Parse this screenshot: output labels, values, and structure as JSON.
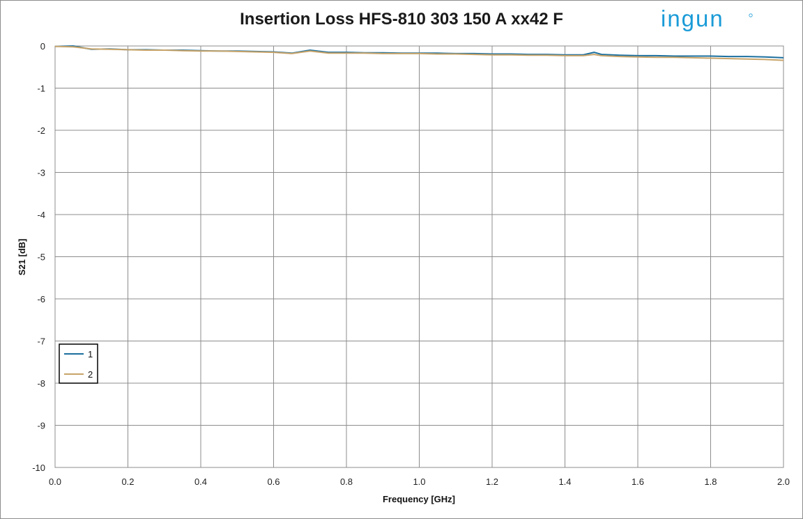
{
  "brand": {
    "name": "ingun",
    "color": "#1a9bd7"
  },
  "chart_data": {
    "type": "line",
    "title": "Insertion Loss HFS-810 303 150 A xx42 F",
    "xlabel": "Frequency [GHz]",
    "ylabel": "S21 [dB]",
    "xlim": [
      0,
      2
    ],
    "ylim": [
      -10,
      0
    ],
    "x_ticks": [
      "0.0",
      "0.2",
      "0.4",
      "0.6",
      "0.8",
      "1.0",
      "1.2",
      "1.4",
      "1.6",
      "1.8",
      "2.0"
    ],
    "y_ticks": [
      "0",
      "-1",
      "-2",
      "-3",
      "-4",
      "-5",
      "-6",
      "-7",
      "-8",
      "-9",
      "-10"
    ],
    "grid": true,
    "legend_position": "bottom-left",
    "series": [
      {
        "name": "1",
        "color": "#1b6f9e",
        "x": [
          0.0,
          0.05,
          0.1,
          0.15,
          0.2,
          0.25,
          0.3,
          0.35,
          0.4,
          0.45,
          0.5,
          0.55,
          0.6,
          0.65,
          0.7,
          0.75,
          0.8,
          0.85,
          0.9,
          0.95,
          1.0,
          1.05,
          1.1,
          1.15,
          1.2,
          1.25,
          1.3,
          1.35,
          1.4,
          1.45,
          1.48,
          1.5,
          1.55,
          1.6,
          1.65,
          1.7,
          1.75,
          1.8,
          1.85,
          1.9,
          1.95,
          2.0
        ],
        "values": [
          -0.01,
          0.0,
          -0.08,
          -0.07,
          -0.09,
          -0.09,
          -0.1,
          -0.1,
          -0.11,
          -0.12,
          -0.12,
          -0.13,
          -0.14,
          -0.17,
          -0.1,
          -0.15,
          -0.15,
          -0.16,
          -0.16,
          -0.17,
          -0.17,
          -0.17,
          -0.18,
          -0.18,
          -0.19,
          -0.19,
          -0.2,
          -0.2,
          -0.21,
          -0.21,
          -0.15,
          -0.2,
          -0.22,
          -0.23,
          -0.23,
          -0.24,
          -0.24,
          -0.24,
          -0.25,
          -0.25,
          -0.26,
          -0.28
        ]
      },
      {
        "name": "2",
        "color": "#c8a46a",
        "x": [
          0.0,
          0.05,
          0.1,
          0.15,
          0.2,
          0.25,
          0.3,
          0.35,
          0.4,
          0.45,
          0.5,
          0.55,
          0.6,
          0.65,
          0.7,
          0.75,
          0.8,
          0.85,
          0.9,
          0.95,
          1.0,
          1.05,
          1.1,
          1.15,
          1.2,
          1.25,
          1.3,
          1.35,
          1.4,
          1.45,
          1.48,
          1.5,
          1.55,
          1.6,
          1.65,
          1.7,
          1.75,
          1.8,
          1.85,
          1.9,
          1.95,
          2.0
        ],
        "values": [
          -0.01,
          -0.02,
          -0.07,
          -0.08,
          -0.09,
          -0.1,
          -0.1,
          -0.11,
          -0.12,
          -0.12,
          -0.13,
          -0.14,
          -0.15,
          -0.18,
          -0.12,
          -0.17,
          -0.17,
          -0.17,
          -0.18,
          -0.18,
          -0.18,
          -0.19,
          -0.19,
          -0.2,
          -0.21,
          -0.21,
          -0.22,
          -0.22,
          -0.23,
          -0.23,
          -0.2,
          -0.23,
          -0.25,
          -0.26,
          -0.27,
          -0.27,
          -0.28,
          -0.29,
          -0.3,
          -0.31,
          -0.32,
          -0.34
        ]
      }
    ]
  }
}
